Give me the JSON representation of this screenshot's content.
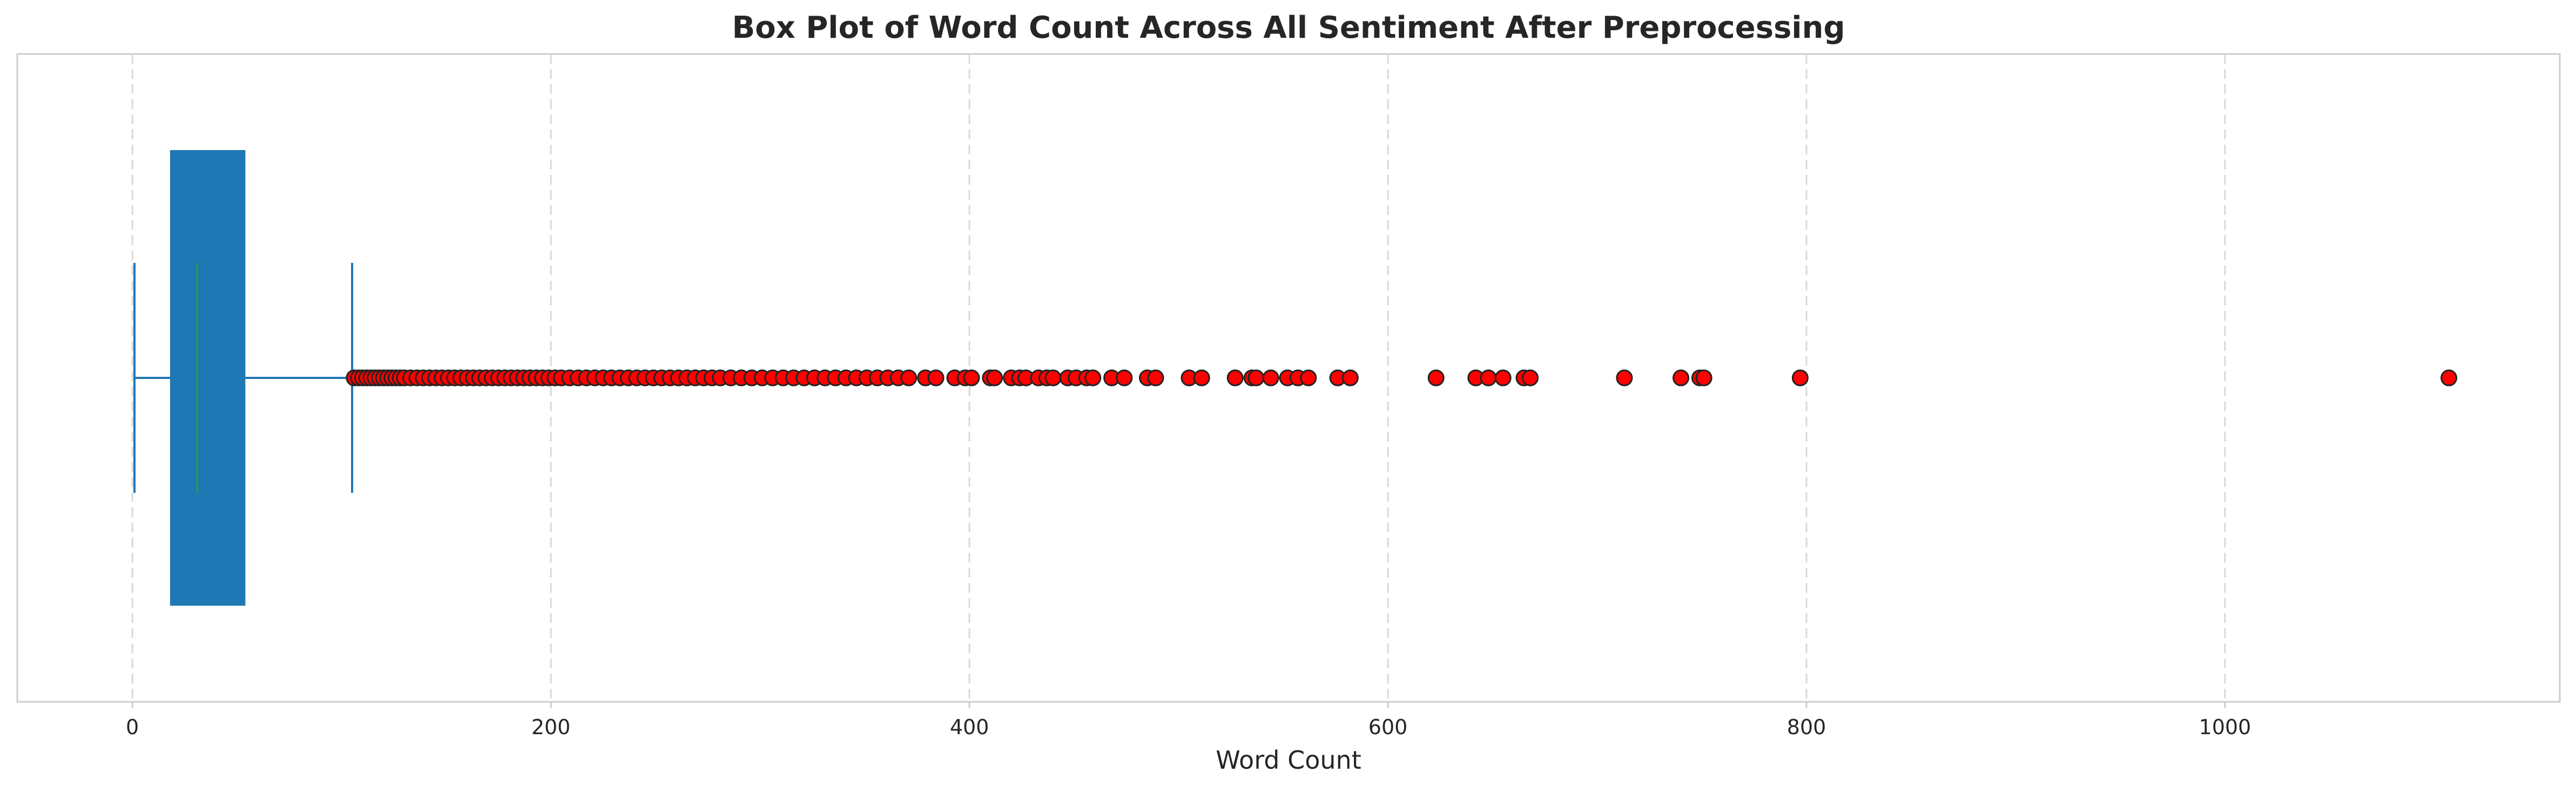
{
  "chart_data": {
    "type": "box",
    "title": "Box Plot of Word Count Across All Sentiment After Preprocessing",
    "xlabel": "Word Count",
    "ylabel": "",
    "orientation": "horizontal",
    "xlim": [
      -55,
      1160
    ],
    "xticks": [
      0,
      200,
      400,
      600,
      800,
      1000
    ],
    "xtick_labels": [
      "0",
      "200",
      "400",
      "600",
      "800",
      "1000"
    ],
    "grid": "vertical dashed",
    "box": {
      "whisker_low": 1,
      "q1": 18,
      "median": 31,
      "q3": 54,
      "whisker_high": 105
    },
    "outliers": [
      106,
      108,
      110,
      112,
      114,
      116,
      118,
      120,
      122,
      124,
      126,
      128,
      130,
      133,
      136,
      139,
      142,
      145,
      148,
      151,
      154,
      157,
      160,
      163,
      166,
      169,
      172,
      175,
      178,
      181,
      184,
      187,
      190,
      193,
      196,
      199,
      202,
      205,
      209,
      213,
      217,
      221,
      225,
      229,
      233,
      237,
      241,
      245,
      249,
      253,
      257,
      261,
      265,
      269,
      273,
      277,
      281,
      286,
      291,
      296,
      301,
      306,
      311,
      316,
      321,
      326,
      331,
      336,
      341,
      346,
      351,
      356,
      361,
      366,
      371,
      379,
      384,
      393,
      398,
      401,
      410,
      412,
      420,
      424,
      427,
      433,
      437,
      440,
      447,
      451,
      456,
      459,
      468,
      474,
      485,
      489,
      505,
      511,
      527,
      535,
      537,
      544,
      552,
      557,
      562,
      576,
      582,
      623,
      642,
      648,
      655,
      665,
      668,
      713,
      740,
      749,
      751,
      797,
      1107
    ],
    "colors": {
      "box": "#1f77b4",
      "median": "#2ca02c",
      "whisker": "#1f77b4",
      "outlier_fill": "#ff0000",
      "outlier_edge": "#222222",
      "grid": "#d9d9d9",
      "spine": "#cccccc",
      "text": "#262626"
    }
  }
}
